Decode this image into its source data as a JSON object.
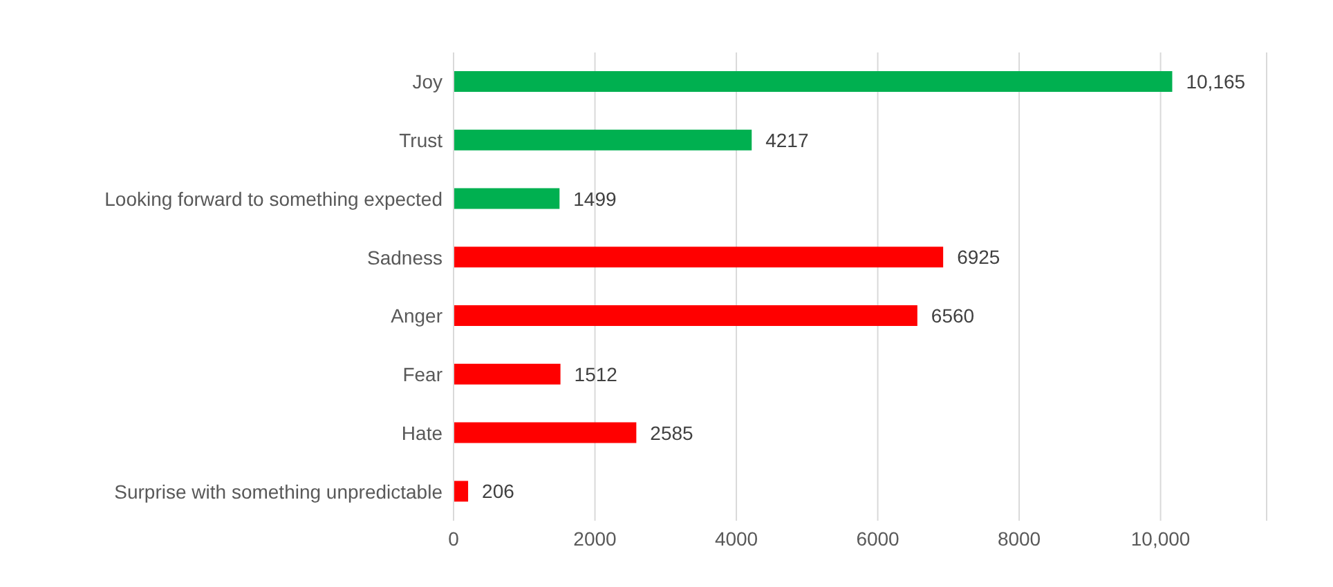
{
  "chart_data": {
    "type": "bar",
    "orientation": "horizontal",
    "categories": [
      "Joy",
      "Trust",
      "Looking forward to something expected",
      "Sadness",
      "Anger",
      "Fear",
      "Hate",
      "Surprise with something unpredictable"
    ],
    "values": [
      10165,
      4217,
      1499,
      6925,
      6560,
      1512,
      2585,
      206
    ],
    "colors": [
      "#00b050",
      "#00b050",
      "#00b050",
      "#ff0000",
      "#ff0000",
      "#ff0000",
      "#ff0000",
      "#ff0000"
    ],
    "value_labels": [
      "10,165",
      "4217",
      "1499",
      "6925",
      "6560",
      "1512",
      "2585",
      "206"
    ],
    "xlim": [
      0,
      11500
    ],
    "xticks": [
      0,
      2000,
      4000,
      6000,
      8000,
      {
        "value": 10000,
        "label": "10,000"
      }
    ],
    "grid": "x"
  }
}
